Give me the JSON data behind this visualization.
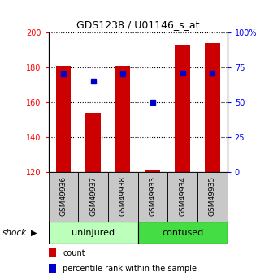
{
  "title": "GDS1238 / U01146_s_at",
  "samples": [
    "GSM49936",
    "GSM49937",
    "GSM49938",
    "GSM49933",
    "GSM49934",
    "GSM49935"
  ],
  "bar_bottom": 120,
  "counts": [
    181,
    154,
    181,
    121,
    193,
    194
  ],
  "percentiles": [
    70,
    65,
    70,
    50,
    71,
    71
  ],
  "ylim_left": [
    120,
    200
  ],
  "ylim_right": [
    0,
    100
  ],
  "yticks_left": [
    120,
    140,
    160,
    180,
    200
  ],
  "yticks_right": [
    0,
    25,
    50,
    75,
    100
  ],
  "bar_color": "#cc0000",
  "dot_color": "#0000cc",
  "bar_width": 0.5,
  "sample_box_color": "#c8c8c8",
  "uninjured_color": "#bbffbb",
  "contused_color": "#44dd44",
  "legend_count_label": "count",
  "legend_percentile_label": "percentile rank within the sample",
  "fig_width": 3.31,
  "fig_height": 3.45,
  "dpi": 100
}
